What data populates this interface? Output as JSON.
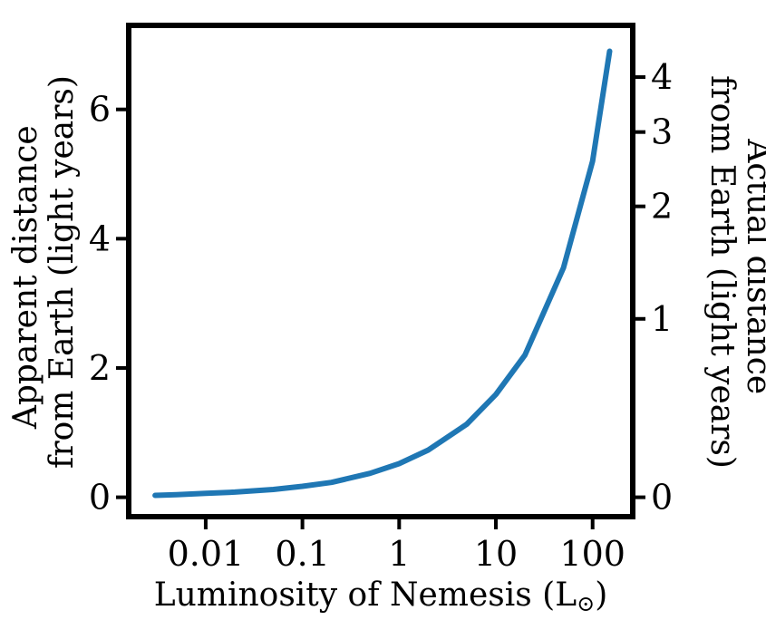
{
  "chart_data": {
    "type": "line",
    "title": "",
    "xlabel": "Luminosity of Nemesis (L",
    "xlabel_symbol": "⊙",
    "xlabel_close": ")",
    "ylabel_left": [
      "Apparent distance",
      "from Earth (light years)"
    ],
    "ylabel_right": [
      "Actual distance",
      "from Earth (light years)"
    ],
    "x_scale": "log",
    "xlim": [
      0.0016,
      260
    ],
    "ylim": [
      -0.3,
      7.3
    ],
    "x_ticks": [
      {
        "value": 0.01,
        "label": "0.01"
      },
      {
        "value": 0.1,
        "label": "0.1"
      },
      {
        "value": 1,
        "label": "1"
      },
      {
        "value": 10,
        "label": "10"
      },
      {
        "value": 100,
        "label": "100"
      }
    ],
    "y_ticks_left": [
      {
        "value": 0,
        "label": "0"
      },
      {
        "value": 2,
        "label": "2"
      },
      {
        "value": 4,
        "label": "4"
      },
      {
        "value": 6,
        "label": "6"
      }
    ],
    "y_ticks_right": [
      {
        "value": 0,
        "label": "0",
        "apparent": 0
      },
      {
        "value": 1,
        "label": "1",
        "apparent": 2.76
      },
      {
        "value": 2,
        "label": "2",
        "apparent": 4.5
      },
      {
        "value": 3,
        "label": "3",
        "apparent": 5.65
      },
      {
        "value": 4,
        "label": "4",
        "apparent": 6.5
      }
    ],
    "series": [
      {
        "color": "#1f77b4",
        "x": [
          0.003,
          0.005,
          0.01,
          0.02,
          0.05,
          0.1,
          0.2,
          0.5,
          1,
          2,
          5,
          10,
          20,
          50,
          100,
          150
        ],
        "y": [
          0.03,
          0.04,
          0.06,
          0.08,
          0.12,
          0.17,
          0.23,
          0.37,
          0.52,
          0.73,
          1.13,
          1.59,
          2.2,
          3.55,
          5.2,
          6.9
        ]
      }
    ],
    "grid": false,
    "legend": "none"
  }
}
